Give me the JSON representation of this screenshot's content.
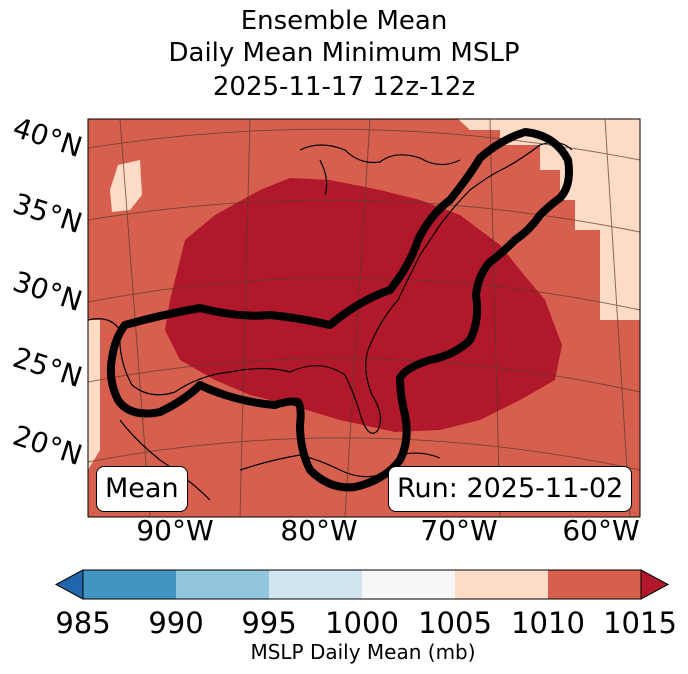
{
  "title": {
    "line1": "Ensemble Mean",
    "line2": "Daily Mean Minimum MSLP",
    "line3": "2025-11-17 12z-12z"
  },
  "lat_labels": [
    "40°N",
    "35°N",
    "30°N",
    "25°N",
    "20°N"
  ],
  "lon_labels": [
    "90°W",
    "80°W",
    "70°W",
    "60°W"
  ],
  "legend_box": "Mean",
  "run_box": "Run: 2025-11-02",
  "colorbar": {
    "label": "MSLP Daily Mean (mb)",
    "ticks": [
      "985",
      "990",
      "995",
      "1000",
      "1005",
      "1010",
      "1015"
    ],
    "colors": [
      "#2166ac",
      "#4393c3",
      "#92c5de",
      "#d1e5f0",
      "#f7f7f7",
      "#fddbc7",
      "#d6604d",
      "#b2182b"
    ]
  },
  "map_colors": {
    "land_low": "#b2182b",
    "mid": "#d6604d",
    "high": "#fddbc7"
  }
}
